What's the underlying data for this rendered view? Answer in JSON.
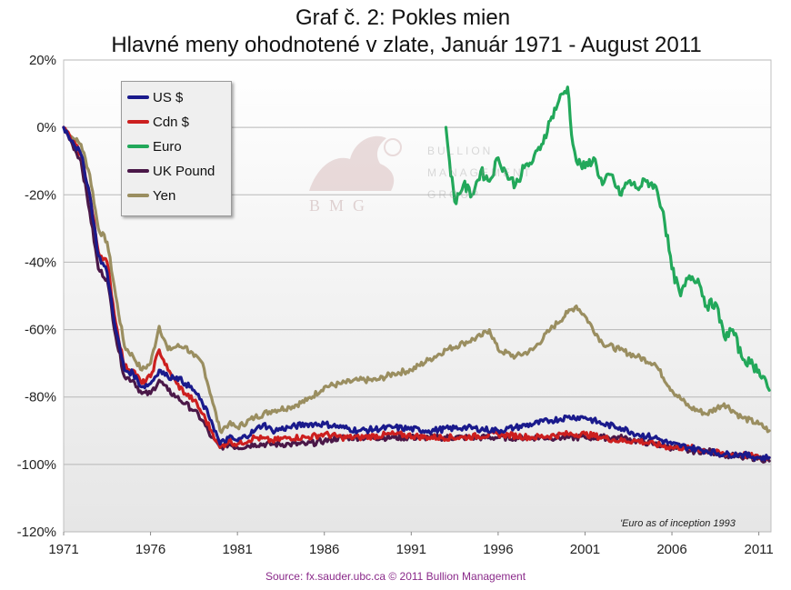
{
  "chart_data": {
    "type": "line",
    "title": "Graf č. 2: Pokles mien",
    "subtitle": "Hlavné meny ohodnotené v zlate, Január 1971 - August 2011",
    "xlabel": "",
    "ylabel": "",
    "xlim": [
      1971,
      2011.7
    ],
    "ylim": [
      -120,
      20
    ],
    "y_ticks": [
      20,
      0,
      -20,
      -40,
      -60,
      -80,
      -100,
      -120
    ],
    "y_tick_labels": [
      "20%",
      "0%",
      "-20%",
      "-40%",
      "-60%",
      "-80%",
      "-100%",
      "-120%"
    ],
    "x_ticks": [
      1971,
      1976,
      1981,
      1986,
      1991,
      1996,
      2001,
      2006,
      2011
    ],
    "x_tick_labels": [
      "1971",
      "1976",
      "1981",
      "1986",
      "1991",
      "1996",
      "2001",
      "2006",
      "2011"
    ],
    "grid": true,
    "legend_position": "top-left",
    "footnote": "'Euro as of inception 1993",
    "source": "Source: fx.sauder.ubc.ca © 2011 Bullion Management",
    "series": [
      {
        "name": "US $",
        "color": "#1a1a8c",
        "points": [
          [
            1971.0,
            0
          ],
          [
            1971.5,
            -4
          ],
          [
            1972.0,
            -8
          ],
          [
            1972.5,
            -20
          ],
          [
            1973.0,
            -38
          ],
          [
            1973.5,
            -43
          ],
          [
            1974.0,
            -60
          ],
          [
            1974.5,
            -72
          ],
          [
            1975.0,
            -73
          ],
          [
            1975.5,
            -77
          ],
          [
            1976.0,
            -76
          ],
          [
            1976.5,
            -72
          ],
          [
            1977.0,
            -74
          ],
          [
            1977.5,
            -74
          ],
          [
            1978.0,
            -76
          ],
          [
            1978.5,
            -78
          ],
          [
            1979.0,
            -82
          ],
          [
            1979.5,
            -87
          ],
          [
            1980.0,
            -94
          ],
          [
            1980.5,
            -92
          ],
          [
            1981.0,
            -93
          ],
          [
            1982.0,
            -90
          ],
          [
            1982.5,
            -88
          ],
          [
            1983.0,
            -90
          ],
          [
            1984.0,
            -89
          ],
          [
            1985.0,
            -88
          ],
          [
            1986.0,
            -88
          ],
          [
            1987.0,
            -89
          ],
          [
            1988.0,
            -90
          ],
          [
            1990.0,
            -89
          ],
          [
            1992.0,
            -90
          ],
          [
            1994.0,
            -89
          ],
          [
            1996.0,
            -90
          ],
          [
            1997.0,
            -89
          ],
          [
            1999.0,
            -87
          ],
          [
            2000.0,
            -86
          ],
          [
            2001.0,
            -86
          ],
          [
            2002.0,
            -88
          ],
          [
            2003.0,
            -89
          ],
          [
            2004.0,
            -91
          ],
          [
            2005.0,
            -92
          ],
          [
            2006.0,
            -94
          ],
          [
            2007.0,
            -95
          ],
          [
            2008.0,
            -96
          ],
          [
            2009.0,
            -97
          ],
          [
            2010.0,
            -97
          ],
          [
            2011.0,
            -98
          ],
          [
            2011.6,
            -98
          ]
        ]
      },
      {
        "name": "Cdn $",
        "color": "#cc1f1f",
        "points": [
          [
            1971.0,
            0
          ],
          [
            1971.5,
            -4
          ],
          [
            1972.0,
            -8
          ],
          [
            1972.5,
            -20
          ],
          [
            1973.0,
            -37
          ],
          [
            1973.5,
            -40
          ],
          [
            1974.0,
            -58
          ],
          [
            1974.5,
            -71
          ],
          [
            1975.0,
            -72
          ],
          [
            1975.5,
            -76
          ],
          [
            1976.0,
            -74
          ],
          [
            1976.5,
            -66
          ],
          [
            1977.0,
            -72
          ],
          [
            1977.5,
            -76
          ],
          [
            1978.0,
            -79
          ],
          [
            1978.5,
            -81
          ],
          [
            1979.0,
            -85
          ],
          [
            1979.5,
            -90
          ],
          [
            1980.0,
            -95
          ],
          [
            1980.5,
            -93
          ],
          [
            1981.0,
            -94
          ],
          [
            1982.0,
            -92
          ],
          [
            1983.0,
            -93
          ],
          [
            1984.0,
            -92
          ],
          [
            1985.0,
            -92
          ],
          [
            1986.0,
            -91
          ],
          [
            1987.0,
            -92
          ],
          [
            1988.0,
            -92
          ],
          [
            1990.0,
            -91
          ],
          [
            1992.0,
            -92
          ],
          [
            1994.0,
            -92
          ],
          [
            1996.0,
            -91
          ],
          [
            1998.0,
            -92
          ],
          [
            2000.0,
            -91
          ],
          [
            2001.0,
            -91
          ],
          [
            2002.0,
            -92
          ],
          [
            2003.0,
            -93
          ],
          [
            2004.0,
            -93
          ],
          [
            2005.0,
            -94
          ],
          [
            2006.0,
            -95
          ],
          [
            2007.0,
            -95
          ],
          [
            2008.0,
            -96
          ],
          [
            2009.0,
            -97
          ],
          [
            2010.0,
            -97
          ],
          [
            2011.0,
            -98
          ],
          [
            2011.6,
            -98
          ]
        ]
      },
      {
        "name": "Euro",
        "color": "#22a85a",
        "points": [
          [
            1993.0,
            0
          ],
          [
            1993.2,
            -10
          ],
          [
            1993.5,
            -22
          ],
          [
            1994.0,
            -17
          ],
          [
            1994.5,
            -20
          ],
          [
            1995.0,
            -13
          ],
          [
            1995.5,
            -16
          ],
          [
            1996.0,
            -9
          ],
          [
            1996.5,
            -14
          ],
          [
            1997.0,
            -17
          ],
          [
            1997.5,
            -12
          ],
          [
            1998.0,
            -10
          ],
          [
            1998.5,
            -5
          ],
          [
            1999.0,
            2
          ],
          [
            1999.5,
            8
          ],
          [
            2000.0,
            12
          ],
          [
            2000.3,
            -5
          ],
          [
            2000.5,
            -10
          ],
          [
            2001.0,
            -12
          ],
          [
            2001.5,
            -9
          ],
          [
            2002.0,
            -17
          ],
          [
            2002.5,
            -14
          ],
          [
            2003.0,
            -20
          ],
          [
            2003.5,
            -16
          ],
          [
            2004.0,
            -18
          ],
          [
            2004.5,
            -16
          ],
          [
            2005.0,
            -17
          ],
          [
            2005.5,
            -25
          ],
          [
            2006.0,
            -42
          ],
          [
            2006.5,
            -50
          ],
          [
            2007.0,
            -44
          ],
          [
            2007.5,
            -45
          ],
          [
            2008.0,
            -53
          ],
          [
            2008.5,
            -52
          ],
          [
            2009.0,
            -62
          ],
          [
            2009.5,
            -60
          ],
          [
            2010.0,
            -68
          ],
          [
            2010.5,
            -70
          ],
          [
            2011.0,
            -72
          ],
          [
            2011.4,
            -75
          ],
          [
            2011.6,
            -78
          ]
        ]
      },
      {
        "name": "UK Pound",
        "color": "#4a1848",
        "points": [
          [
            1971.0,
            0
          ],
          [
            1971.5,
            -5
          ],
          [
            1972.0,
            -10
          ],
          [
            1972.5,
            -25
          ],
          [
            1973.0,
            -42
          ],
          [
            1973.5,
            -45
          ],
          [
            1974.0,
            -62
          ],
          [
            1974.5,
            -74
          ],
          [
            1975.0,
            -75
          ],
          [
            1975.5,
            -79
          ],
          [
            1976.0,
            -79
          ],
          [
            1976.5,
            -75
          ],
          [
            1977.0,
            -78
          ],
          [
            1977.5,
            -80
          ],
          [
            1978.0,
            -82
          ],
          [
            1978.5,
            -84
          ],
          [
            1979.0,
            -87
          ],
          [
            1979.5,
            -92
          ],
          [
            1980.0,
            -95
          ],
          [
            1980.5,
            -94
          ],
          [
            1981.0,
            -95
          ],
          [
            1982.0,
            -94
          ],
          [
            1983.0,
            -94
          ],
          [
            1984.0,
            -94
          ],
          [
            1985.0,
            -94
          ],
          [
            1986.0,
            -93
          ],
          [
            1987.0,
            -92
          ],
          [
            1988.0,
            -92
          ],
          [
            1990.0,
            -92
          ],
          [
            1992.0,
            -92
          ],
          [
            1994.0,
            -92
          ],
          [
            1996.0,
            -92
          ],
          [
            1998.0,
            -92
          ],
          [
            2000.0,
            -92
          ],
          [
            2001.0,
            -92
          ],
          [
            2002.0,
            -92
          ],
          [
            2003.0,
            -92
          ],
          [
            2004.0,
            -93
          ],
          [
            2005.0,
            -94
          ],
          [
            2006.0,
            -95
          ],
          [
            2007.0,
            -96
          ],
          [
            2008.0,
            -96
          ],
          [
            2009.0,
            -97
          ],
          [
            2010.0,
            -98
          ],
          [
            2011.0,
            -98
          ],
          [
            2011.6,
            -99
          ]
        ]
      },
      {
        "name": "Yen",
        "color": "#9a8e60",
        "points": [
          [
            1971.0,
            0
          ],
          [
            1971.5,
            -3
          ],
          [
            1972.0,
            -5
          ],
          [
            1972.5,
            -14
          ],
          [
            1973.0,
            -30
          ],
          [
            1973.5,
            -34
          ],
          [
            1974.0,
            -50
          ],
          [
            1974.5,
            -65
          ],
          [
            1975.0,
            -68
          ],
          [
            1975.5,
            -72
          ],
          [
            1976.0,
            -70
          ],
          [
            1976.5,
            -59
          ],
          [
            1977.0,
            -66
          ],
          [
            1977.5,
            -65
          ],
          [
            1978.0,
            -65
          ],
          [
            1978.5,
            -68
          ],
          [
            1979.0,
            -70
          ],
          [
            1979.5,
            -80
          ],
          [
            1980.0,
            -90
          ],
          [
            1980.5,
            -88
          ],
          [
            1981.0,
            -89
          ],
          [
            1982.0,
            -86
          ],
          [
            1983.0,
            -84
          ],
          [
            1984.0,
            -83
          ],
          [
            1985.0,
            -81
          ],
          [
            1986.0,
            -77
          ],
          [
            1987.0,
            -76
          ],
          [
            1988.0,
            -75
          ],
          [
            1989.0,
            -75
          ],
          [
            1990.0,
            -73
          ],
          [
            1991.0,
            -72
          ],
          [
            1992.0,
            -69
          ],
          [
            1993.0,
            -66
          ],
          [
            1994.0,
            -64
          ],
          [
            1995.0,
            -62
          ],
          [
            1995.5,
            -60
          ],
          [
            1996.0,
            -66
          ],
          [
            1997.0,
            -68
          ],
          [
            1998.0,
            -66
          ],
          [
            1999.0,
            -60
          ],
          [
            2000.0,
            -55
          ],
          [
            2000.5,
            -53
          ],
          [
            2001.0,
            -56
          ],
          [
            2002.0,
            -64
          ],
          [
            2003.0,
            -66
          ],
          [
            2004.0,
            -68
          ],
          [
            2005.0,
            -70
          ],
          [
            2006.0,
            -78
          ],
          [
            2007.0,
            -83
          ],
          [
            2008.0,
            -85
          ],
          [
            2009.0,
            -82
          ],
          [
            2009.5,
            -84
          ],
          [
            2010.0,
            -86
          ],
          [
            2011.0,
            -88
          ],
          [
            2011.6,
            -90
          ]
        ]
      }
    ]
  },
  "legend": {
    "items": [
      {
        "label": "US $",
        "color": "#1a1a8c"
      },
      {
        "label": "Cdn $",
        "color": "#cc1f1f"
      },
      {
        "label": "Euro",
        "color": "#22a85a"
      },
      {
        "label": "UK Pound",
        "color": "#4a1848"
      },
      {
        "label": "Yen",
        "color": "#9a8e60"
      }
    ]
  },
  "watermark": {
    "logo_letters": "BMG",
    "text_lines": [
      "BULLION",
      "MANAGEMENT",
      "GROUP"
    ]
  }
}
